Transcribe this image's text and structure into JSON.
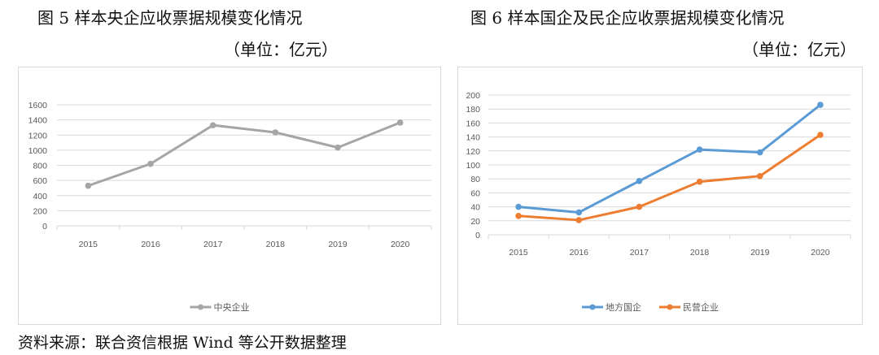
{
  "figures": [
    {
      "title": "图 5  样本央企应收票据规模变化情况",
      "unit": "（单位：亿元）"
    },
    {
      "title": "图 6  样本国企及民企应收票据规模变化情况",
      "unit": "（单位：亿元）"
    }
  ],
  "source": "资料来源：联合资信根据 Wind 等公开数据整理",
  "chart_data": [
    {
      "type": "line",
      "categories": [
        "2015",
        "2016",
        "2017",
        "2018",
        "2019",
        "2020"
      ],
      "ylim": [
        0,
        1600
      ],
      "yticks": [
        "0",
        "200",
        "400",
        "600",
        "800",
        "1000",
        "1200",
        "1400",
        "1600"
      ],
      "grid": true,
      "legend": "bottom",
      "series": [
        {
          "name": "中央企业",
          "color": "#a5a5a5",
          "values": [
            530,
            820,
            1330,
            1235,
            1035,
            1365
          ]
        }
      ]
    },
    {
      "type": "line",
      "categories": [
        "2015",
        "2016",
        "2017",
        "2018",
        "2019",
        "2020"
      ],
      "ylim": [
        0,
        200
      ],
      "yticks": [
        "0",
        "20",
        "40",
        "60",
        "80",
        "100",
        "120",
        "140",
        "160",
        "180",
        "200"
      ],
      "grid": true,
      "legend": "bottom",
      "series": [
        {
          "name": "地方国企",
          "color": "#5b9bd5",
          "values": [
            40,
            32,
            77,
            122,
            118,
            186
          ]
        },
        {
          "name": "民营企业",
          "color": "#ed7d31",
          "values": [
            27,
            21,
            40,
            76,
            84,
            143
          ]
        }
      ]
    }
  ]
}
